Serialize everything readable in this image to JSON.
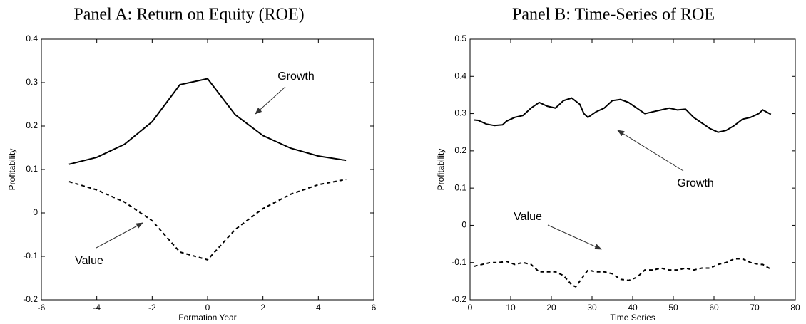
{
  "chart_data": [
    {
      "type": "line",
      "title": "Panel A: Return on Equity (ROE)",
      "xlabel": "Formation Year",
      "ylabel": "Profitability",
      "x": [
        -5,
        -4,
        -3,
        -2,
        -1,
        0,
        1,
        2,
        3,
        4,
        5
      ],
      "series": [
        {
          "name": "Growth",
          "color": "#000000",
          "linestyle": "solid",
          "values": [
            0.112,
            0.128,
            0.158,
            0.21,
            0.295,
            0.309,
            0.226,
            0.178,
            0.149,
            0.131,
            0.121
          ]
        },
        {
          "name": "Value",
          "color": "#000000",
          "linestyle": "dashed",
          "values": [
            0.072,
            0.053,
            0.025,
            -0.018,
            -0.09,
            -0.108,
            -0.038,
            0.01,
            0.043,
            0.065,
            0.077
          ]
        }
      ],
      "xlim": [
        -6,
        6
      ],
      "xticks": [
        -6,
        -4,
        -2,
        0,
        2,
        4,
        6
      ],
      "ylim": [
        -0.2,
        0.4
      ],
      "yticks": [
        -0.2,
        -0.1,
        0,
        0.1,
        0.2,
        0.3,
        0.4
      ],
      "grid": false
    },
    {
      "type": "line",
      "title": "Panel B: Time-Series of ROE",
      "xlabel": "Time Series",
      "ylabel": "Profitability",
      "series": [
        {
          "name": "Growth",
          "color": "#000000",
          "linestyle": "solid",
          "x": [
            1,
            2,
            4,
            6,
            8,
            9,
            11,
            13,
            15,
            17,
            19,
            21,
            23,
            25,
            27,
            28,
            29,
            31,
            33,
            35,
            37,
            39,
            41,
            43,
            45,
            47,
            49,
            51,
            53,
            55,
            57,
            59,
            61,
            63,
            65,
            67,
            69,
            71,
            72,
            74
          ],
          "values": [
            0.283,
            0.282,
            0.272,
            0.268,
            0.27,
            0.28,
            0.29,
            0.295,
            0.315,
            0.33,
            0.32,
            0.315,
            0.335,
            0.342,
            0.325,
            0.3,
            0.29,
            0.305,
            0.315,
            0.335,
            0.338,
            0.33,
            0.315,
            0.3,
            0.305,
            0.31,
            0.315,
            0.31,
            0.312,
            0.29,
            0.275,
            0.26,
            0.25,
            0.255,
            0.268,
            0.285,
            0.29,
            0.3,
            0.31,
            0.298
          ]
        },
        {
          "name": "Value",
          "color": "#000000",
          "linestyle": "dashed",
          "x": [
            1,
            3,
            5,
            7,
            9,
            11,
            13,
            15,
            17,
            19,
            21,
            23,
            25,
            26,
            28,
            29,
            31,
            33,
            35,
            37,
            39,
            41,
            43,
            45,
            47,
            49,
            51,
            53,
            55,
            57,
            59,
            61,
            63,
            65,
            67,
            69,
            71,
            72,
            74
          ],
          "values": [
            -0.11,
            -0.105,
            -0.1,
            -0.1,
            -0.097,
            -0.105,
            -0.1,
            -0.105,
            -0.125,
            -0.125,
            -0.125,
            -0.135,
            -0.16,
            -0.165,
            -0.135,
            -0.12,
            -0.125,
            -0.125,
            -0.13,
            -0.145,
            -0.148,
            -0.14,
            -0.12,
            -0.12,
            -0.115,
            -0.12,
            -0.12,
            -0.115,
            -0.12,
            -0.115,
            -0.115,
            -0.105,
            -0.1,
            -0.09,
            -0.09,
            -0.1,
            -0.105,
            -0.105,
            -0.118
          ]
        }
      ],
      "xlim": [
        0,
        80
      ],
      "xticks": [
        0,
        10,
        20,
        30,
        40,
        50,
        60,
        70,
        80
      ],
      "ylim": [
        -0.2,
        0.5
      ],
      "yticks": [
        -0.2,
        -0.1,
        0,
        0.1,
        0.2,
        0.3,
        0.4,
        0.5
      ],
      "grid": false
    }
  ]
}
